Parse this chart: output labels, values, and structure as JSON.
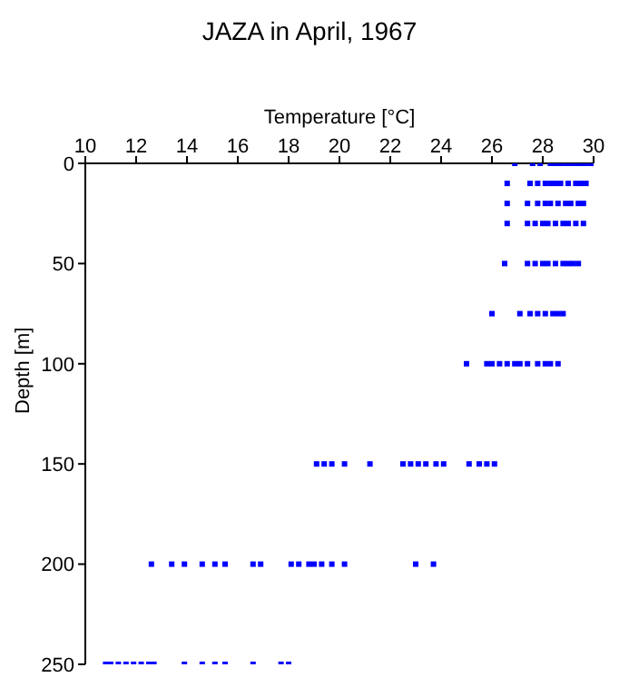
{
  "chart_data": {
    "type": "scatter",
    "title": "JAZA in April, 1967",
    "xlabel": "Temperature [°C]",
    "ylabel": "Depth [m]",
    "xlim": [
      10,
      30
    ],
    "xticks": [
      10,
      12,
      14,
      16,
      18,
      20,
      22,
      24,
      26,
      28,
      30
    ],
    "ylim": [
      250,
      0
    ],
    "yticks": [
      0,
      50,
      100,
      150,
      200,
      250
    ],
    "grid": false,
    "legend": false,
    "marker": "square",
    "series": [
      {
        "color": "#0000ff",
        "x": [
          26.9,
          27.6,
          27.9,
          28.3,
          28.5,
          28.7,
          28.9,
          29.1,
          29.3,
          29.5,
          29.7,
          29.9,
          26.6,
          27.5,
          27.8,
          28.1,
          28.3,
          28.5,
          28.7,
          29.0,
          29.3,
          29.5,
          29.7,
          26.6,
          27.4,
          27.8,
          28.1,
          28.3,
          28.6,
          28.9,
          29.1,
          29.4,
          29.6,
          26.6,
          27.4,
          27.7,
          28.0,
          28.2,
          28.5,
          28.8,
          29.0,
          29.3,
          29.6,
          26.5,
          27.4,
          27.7,
          28.0,
          28.2,
          28.5,
          28.8,
          29.0,
          29.2,
          29.4,
          26.0,
          27.1,
          27.5,
          27.8,
          28.1,
          28.4,
          28.6,
          28.8,
          25.0,
          25.8,
          26.0,
          26.3,
          26.6,
          26.9,
          27.1,
          27.4,
          27.8,
          28.1,
          28.3,
          28.6,
          19.1,
          19.4,
          19.7,
          20.2,
          21.2,
          22.5,
          22.8,
          23.1,
          23.4,
          23.8,
          24.1,
          25.1,
          25.5,
          25.8,
          26.1,
          12.6,
          13.4,
          13.9,
          14.6,
          15.1,
          15.5,
          16.6,
          16.9,
          18.1,
          18.4,
          18.8,
          19.0,
          19.3,
          19.7,
          20.2,
          23.0,
          23.7,
          10.8,
          11.0,
          11.3,
          11.6,
          11.9,
          12.2,
          12.5,
          12.7,
          13.9,
          14.6,
          15.1,
          15.5,
          16.6,
          17.7,
          18.0
        ],
        "values": [
          0,
          0,
          0,
          0,
          0,
          0,
          0,
          0,
          0,
          0,
          0,
          0,
          10,
          10,
          10,
          10,
          10,
          10,
          10,
          10,
          10,
          10,
          10,
          20,
          20,
          20,
          20,
          20,
          20,
          20,
          20,
          20,
          20,
          30,
          30,
          30,
          30,
          30,
          30,
          30,
          30,
          30,
          30,
          50,
          50,
          50,
          50,
          50,
          50,
          50,
          50,
          50,
          50,
          75,
          75,
          75,
          75,
          75,
          75,
          75,
          75,
          100,
          100,
          100,
          100,
          100,
          100,
          100,
          100,
          100,
          100,
          100,
          100,
          150,
          150,
          150,
          150,
          150,
          150,
          150,
          150,
          150,
          150,
          150,
          150,
          150,
          150,
          150,
          200,
          200,
          200,
          200,
          200,
          200,
          200,
          200,
          200,
          200,
          200,
          200,
          200,
          200,
          200,
          200,
          200,
          250,
          250,
          250,
          250,
          250,
          250,
          250,
          250,
          250,
          250,
          250,
          250,
          250,
          250,
          250
        ]
      }
    ]
  }
}
